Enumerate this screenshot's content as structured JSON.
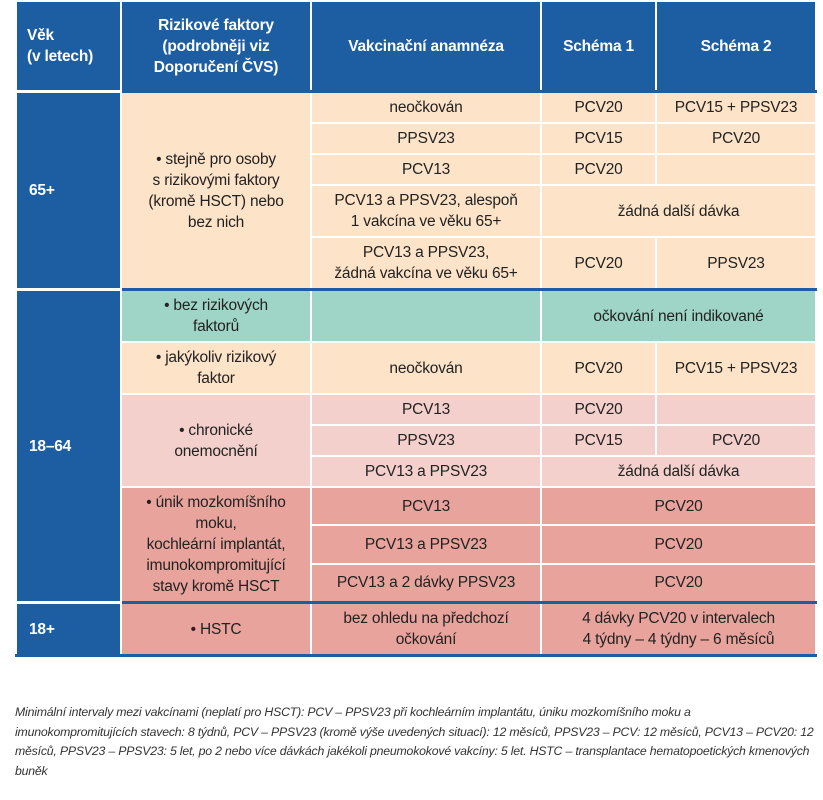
{
  "table": {
    "header": [
      "Věk\n(v letech)",
      "Rizikové faktory\n(podrobněji viz\nDoporučení ČVS)",
      "Vakcinační anamnéza",
      "Schéma 1",
      "Schéma 2"
    ],
    "groups": [
      {
        "age": "65+",
        "risks": [
          {
            "factor": "• stejně pro osoby\ns rizikovými faktory\n(kromě HSCT) nebo\nbez nich",
            "color": "#fde3c8",
            "entries": [
              {
                "history": "neočkován",
                "schema1": "PCV20",
                "schema2": "PCV15 + PPSV23"
              },
              {
                "history": "PPSV23",
                "schema1": "PCV15",
                "schema2": "PCV20"
              },
              {
                "history": "PCV13",
                "schema1": "PCV20"
              },
              {
                "history": "PCV13 a PPSV23, alespoň\n1 vakcína ve věku 65+",
                "schema": "žádná další dávka"
              },
              {
                "history": "PCV13 a PPSV23,\nžádná vakcína ve věku 65+",
                "schema1": "PCV20",
                "schema2": "PPSV23"
              }
            ]
          }
        ]
      },
      {
        "age": "18–64",
        "risks": [
          {
            "factor": "• bez rizikových\nfaktorů",
            "color": "#9fd5c6",
            "entries": [
              {
                "schema": "očkování není indikované"
              }
            ]
          },
          {
            "factor": "• jakýkoliv rizikový\nfaktor",
            "color": "#fde3c8",
            "entries": [
              {
                "history": "neočkován",
                "schema1": "PCV20",
                "schema2": "PCV15 + PPSV23"
              }
            ]
          },
          {
            "factor": "• chronické\nonemocnění",
            "color": "#f3d0cb",
            "entries": [
              {
                "history": "PCV13",
                "schema1": "PCV20"
              },
              {
                "history": "PPSV23",
                "schema1": "PCV15",
                "schema2": "PCV20"
              },
              {
                "history": "PCV13 a PPSV23",
                "schema": "žádná další dávka"
              }
            ]
          },
          {
            "factor": "• únik mozkomíšního\nmoku,\nkochleární implantát,\nimunokompromitující\nstavy kromě HSCT",
            "color": "#e8a49c",
            "entries": [
              {
                "history": "PCV13",
                "schema": "PCV20"
              },
              {
                "history": "PCV13 a PPSV23",
                "schema": "PCV20"
              },
              {
                "history": "PCV13 a 2 dávky PPSV23",
                "schema": "PCV20"
              }
            ]
          }
        ]
      },
      {
        "age": "18+",
        "risks": [
          {
            "factor": "• HSTC",
            "color": "#e8a49c",
            "entries": [
              {
                "history": "bez ohledu na předchozí\nočkování",
                "schema": "4 dávky PCV20 v intervalech\n4 týdny – 4 týdny – 6 měsíců"
              }
            ]
          }
        ]
      }
    ],
    "note": "Minimální intervaly mezi vakcínami (neplatí pro HSCT): PCV – PPSV23 při kochleárním implantátu, úniku mozkomíšního moku a imunokompromitujících stavech: 8 týdnů, PCV – PPSV23 (kromě výše uvedených situací): 12 měsíců, PPSV23 – PCV: 12 měsíců, PCV13 – PCV20: 12 měsíců, PPSV23 – PPSV23: 5 let, po 2 nebo více dávkách jakékoli pneumokokové vakcíny: 5 let. HSTC – transplantace hematopoetických kmenových buněk"
  }
}
